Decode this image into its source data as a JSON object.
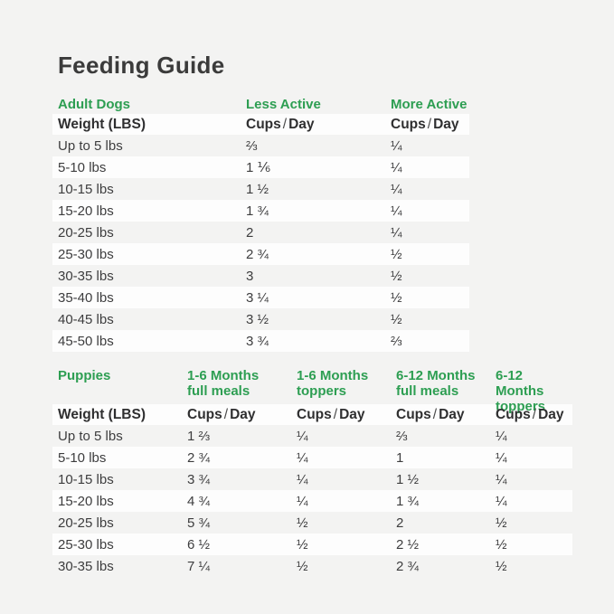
{
  "title": "Feeding Guide",
  "labels": {
    "cups": "Cups",
    "slash": "/",
    "day": "Day"
  },
  "colors": {
    "accent_green": "#2d9e52",
    "title_text": "#3b3b3b",
    "body_text": "#3d3d3e",
    "stripe_white": "#fdfdfd",
    "page_background": "#f3f3f2"
  },
  "chart_data": [
    {
      "type": "table",
      "title": "Adult Dogs",
      "section_label": "Adult Dogs",
      "activity_cols": [
        "Less Active",
        "More Active"
      ],
      "weight_header": "Weight (LBS)",
      "unit_header": "Cups / Day",
      "rows": [
        [
          "Up to 5 lbs",
          "⅔",
          "¼"
        ],
        [
          "5-10 lbs",
          "1 ⅙",
          "¼"
        ],
        [
          "10-15 lbs",
          "1 ½",
          "¼"
        ],
        [
          "15-20 lbs",
          "1 ¾",
          "¼"
        ],
        [
          "20-25 lbs",
          "2",
          "¼"
        ],
        [
          "25-30 lbs",
          "2 ¾",
          "½"
        ],
        [
          "30-35 lbs",
          "3",
          "½"
        ],
        [
          "35-40 lbs",
          "3 ¼",
          "½"
        ],
        [
          "40-45 lbs",
          "3 ½",
          "½"
        ],
        [
          "45-50 lbs",
          "3 ¾",
          "⅔"
        ]
      ]
    },
    {
      "type": "table",
      "title": "Puppies",
      "section_label": "Puppies",
      "cols": [
        {
          "line1": "1-6 Months",
          "line2": "full meals"
        },
        {
          "line1": "1-6 Months",
          "line2": "toppers"
        },
        {
          "line1": "6-12 Months",
          "line2": "full meals"
        },
        {
          "line1": "6-12 Months",
          "line2": "toppers"
        }
      ],
      "weight_header": "Weight (LBS)",
      "unit_header": "Cups / Day",
      "rows": [
        [
          "Up to 5 lbs",
          "1 ⅔",
          "¼",
          "⅔",
          "¼"
        ],
        [
          "5-10 lbs",
          "2 ¾",
          "¼",
          "1",
          "¼"
        ],
        [
          "10-15 lbs",
          "3 ¾",
          "¼",
          "1 ½",
          "¼"
        ],
        [
          "15-20 lbs",
          "4 ¾",
          "¼",
          "1 ¾",
          "¼"
        ],
        [
          "20-25 lbs",
          "5 ¾",
          "½",
          "2",
          "½"
        ],
        [
          "25-30 lbs",
          "6 ½",
          "½",
          "2 ½",
          "½"
        ],
        [
          "30-35 lbs",
          "7 ¼",
          "½",
          "2 ¾",
          "½"
        ]
      ]
    }
  ]
}
